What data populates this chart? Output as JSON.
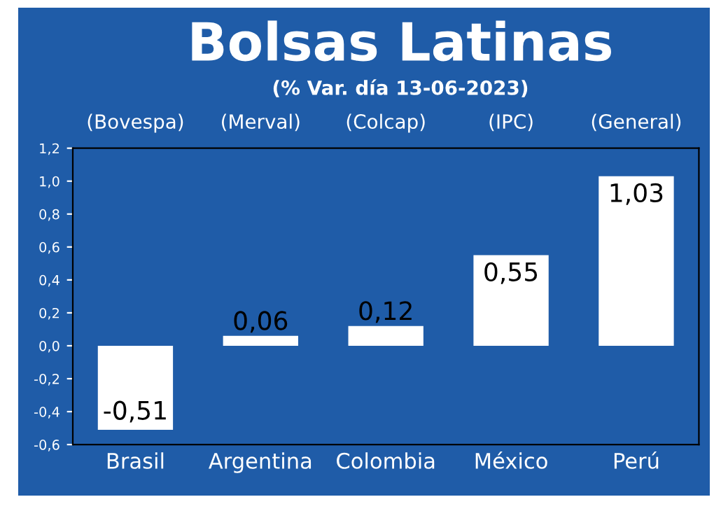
{
  "chart_data": {
    "type": "bar",
    "title": "Bolsas Latinas",
    "subtitle": "(% Var. día 13-06-2023)",
    "categories": [
      "Brasil",
      "Argentina",
      "Colombia",
      "México",
      "Perú"
    ],
    "values": [
      -0.51,
      0.06,
      0.12,
      0.55,
      1.03
    ],
    "value_labels": [
      "-0,51",
      "0,06",
      "0,12",
      "0,55",
      "1,03"
    ],
    "color": "#ffffff",
    "annotations": [
      "(Bovespa)",
      "(Merval)",
      "(Colcap)",
      "(IPC)",
      "(General)"
    ],
    "ylim": [
      -0.6,
      1.2
    ],
    "yticks": [
      {
        "value": -0.6,
        "label": "-0,6"
      },
      {
        "value": -0.4,
        "label": "-0,4"
      },
      {
        "value": -0.2,
        "label": "-0,2"
      },
      {
        "value": 0.0,
        "label": "0,0"
      },
      {
        "value": 0.2,
        "label": "0,2"
      },
      {
        "value": 0.4,
        "label": "0,4"
      },
      {
        "value": 0.6,
        "label": "0,6"
      },
      {
        "value": 0.8,
        "label": "0,8"
      },
      {
        "value": 1.0,
        "label": "1,0"
      },
      {
        "value": 1.2,
        "label": "1,2"
      }
    ],
    "grid": false,
    "legend": false
  }
}
